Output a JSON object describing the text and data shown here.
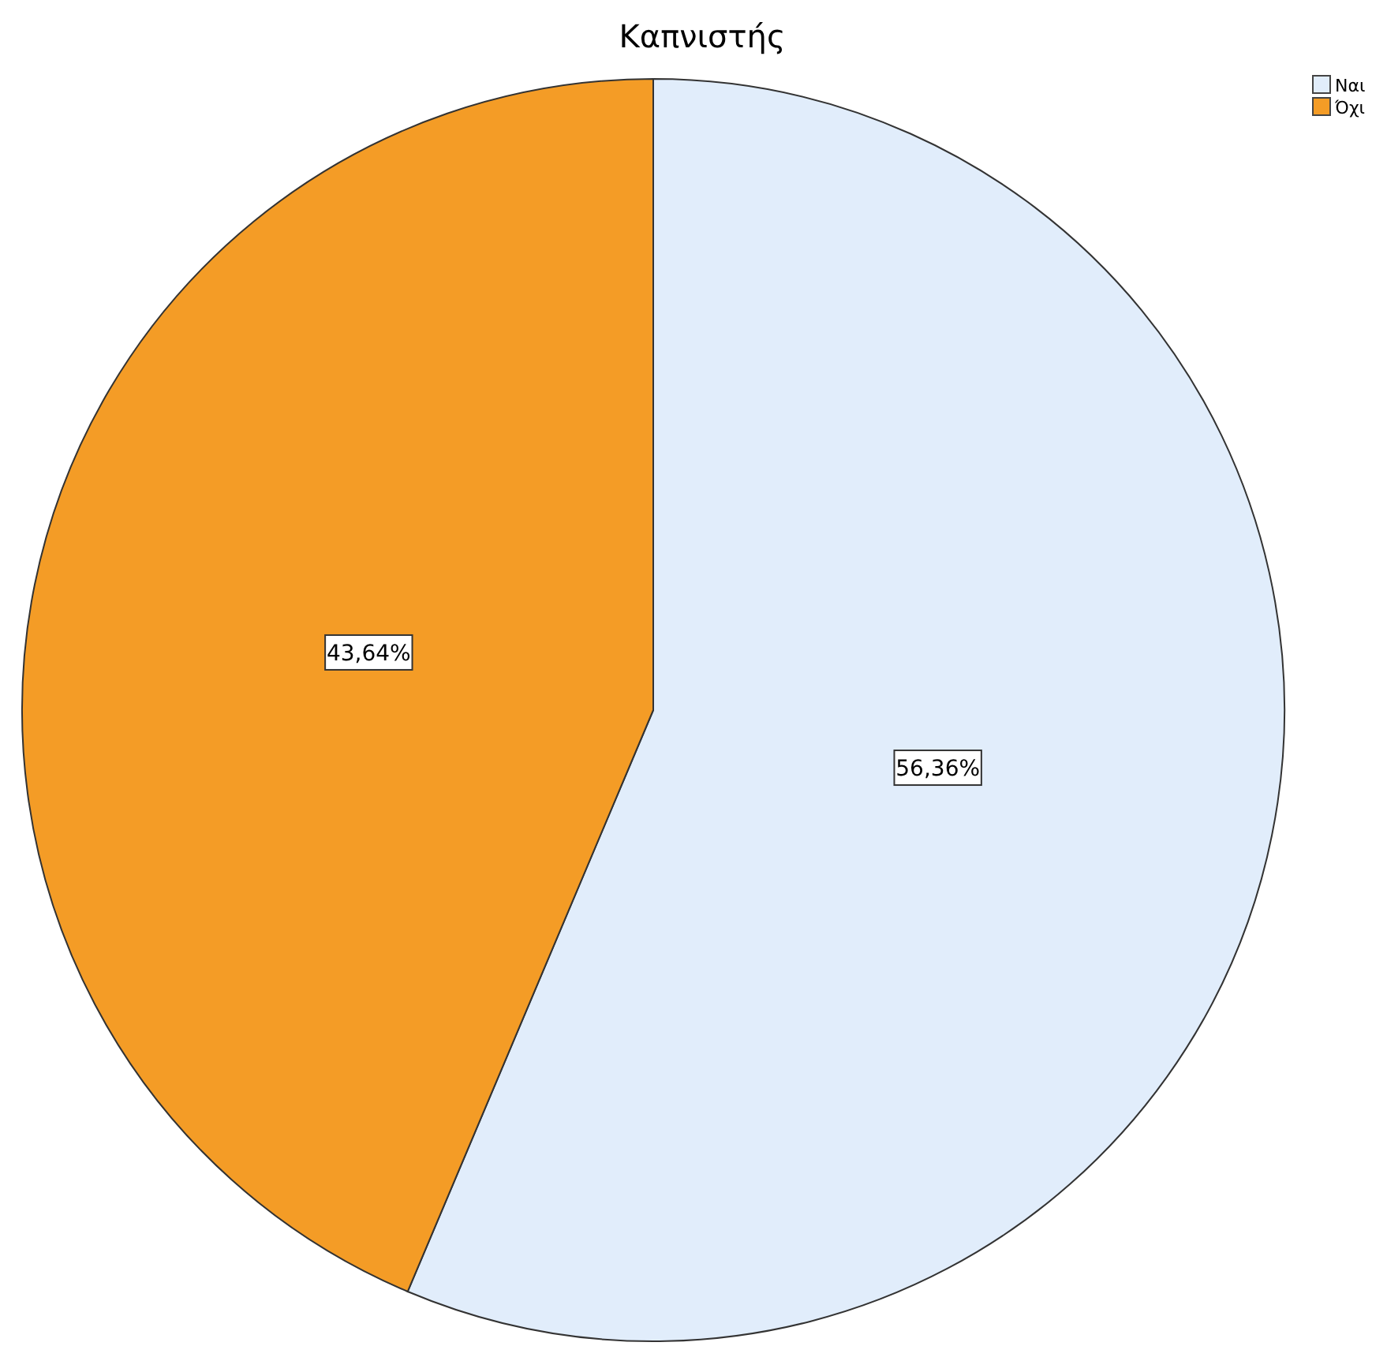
{
  "chart_data": {
    "type": "pie",
    "title": "Καπνιστής",
    "categories": [
      "Ναι",
      "Όχι"
    ],
    "values": [
      56.36,
      43.64
    ],
    "colors": [
      "#e1edfb",
      "#f49c26"
    ],
    "value_labels": [
      "56,36%",
      "43,64%"
    ],
    "legend": "top right"
  }
}
